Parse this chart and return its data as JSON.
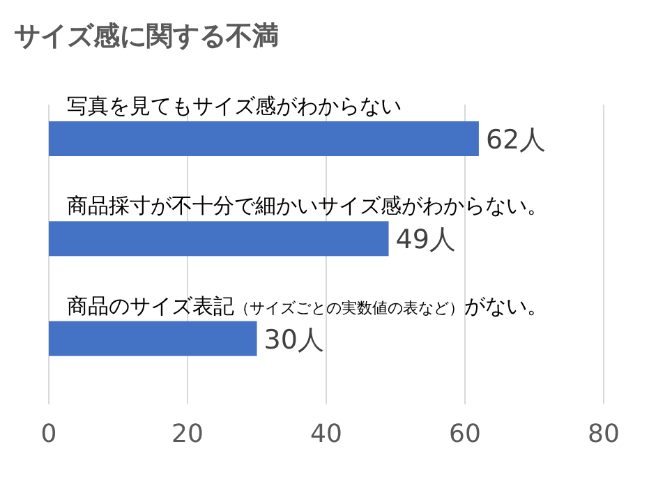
{
  "chart_data": {
    "type": "bar",
    "orientation": "horizontal",
    "title": "サイズ感に関する不満",
    "categories": [
      "写真を見てもサイズ感がわからない",
      "商品採寸が不十分で細かいサイズ感がわからない。",
      "商品のサイズ表記（サイズごとの実数値の表など）がない。"
    ],
    "values": [
      62,
      49,
      30
    ],
    "color": "#4472c4",
    "value_labels": [
      "62人",
      "49人",
      "30人"
    ],
    "xlim": [
      0,
      80
    ],
    "xticks": [
      0,
      20,
      40,
      60,
      80
    ],
    "grid": "x"
  }
}
